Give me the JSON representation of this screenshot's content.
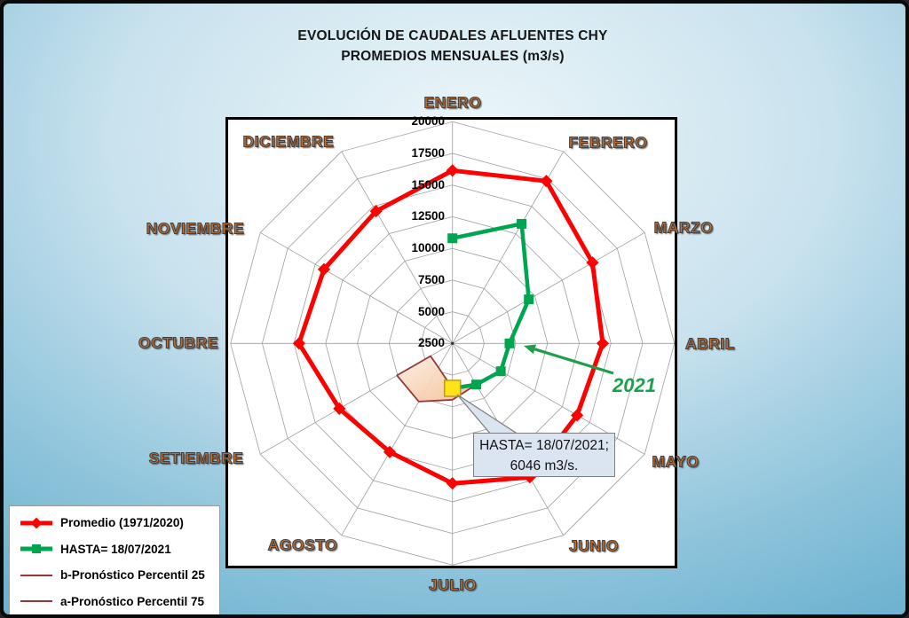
{
  "title": {
    "line1": "EVOLUCIÓN DE CAUDALES AFLUENTES CHY",
    "line2": "PROMEDIOS MENSUALES (m3/s)"
  },
  "annotations": {
    "year_label": "2021",
    "callout": {
      "line1": "HASTA= 18/07/2021;",
      "line2": "6046 m3/s."
    }
  },
  "legend": {
    "items": [
      {
        "label": "Promedio (1971/2020)",
        "color": "#FF0000",
        "marker": "diamond",
        "thick": true
      },
      {
        "label": "HASTA= 18/07/2021",
        "color": "#00A550",
        "marker": "square",
        "thick": true
      },
      {
        "label": "b-Pronóstico Percentil 25",
        "color": "#953735",
        "marker": "none",
        "thick": false
      },
      {
        "label": "a-Pronóstico Percentil 75",
        "color": "#953735",
        "marker": "none",
        "thick": false
      }
    ]
  },
  "colors": {
    "grid": "#9E9E9E",
    "promedio": "#FF0000",
    "hasta": "#00A550",
    "pronostico": "#953735",
    "highlight_fill": "#FFE319",
    "highlight_border": "#B99B1C",
    "band_light": "#FDEFE3",
    "band_dark": "#F3BC90",
    "callout_bg": "#DBE5F1",
    "month_label": "#C9702F",
    "arrow_green": "#1E9E4A"
  },
  "chart_data": {
    "type": "radar",
    "categories": [
      "ENERO",
      "FEBRERO",
      "MARZO",
      "ABRIL",
      "MAYO",
      "JUNIO",
      "JULIO",
      "AGOSTO",
      "SETIEMBRE",
      "OCTUBRE",
      "NOVIEMBRE",
      "DICIEMBRE"
    ],
    "radial_axis": {
      "min": 2500,
      "max": 20000,
      "step": 2500,
      "tick_labels": [
        "2500",
        "5000",
        "7500",
        "10000",
        "12500",
        "15000",
        "17500",
        "20000"
      ]
    },
    "grid": true,
    "legend_position": "bottom-left",
    "series": [
      {
        "name": "Promedio (1971/2020)",
        "color": "#FF0000",
        "marker": "diamond",
        "closed": true,
        "values": [
          16150,
          17300,
          15250,
          14350,
          13850,
          14700,
          13550,
          12400,
          12800,
          14600,
          14200,
          14550
        ]
      },
      {
        "name": "HASTA= 18/07/2021",
        "color": "#00A550",
        "marker": "square",
        "closed": false,
        "month_indices": [
          0,
          1,
          2,
          3,
          4,
          5,
          6
        ],
        "values": [
          10800,
          13400,
          9450,
          7000,
          6900,
          6250,
          6046
        ]
      },
      {
        "name": "b-Pronóstico Percentil 25",
        "color": "#953735",
        "marker": "none",
        "month_indices": [
          5,
          6,
          7,
          8
        ],
        "values": [
          6250,
          6046,
          4700,
          4500
        ]
      },
      {
        "name": "a-Pronóstico Percentil 75",
        "color": "#953735",
        "marker": "none",
        "month_indices": [
          5,
          6,
          7,
          8
        ],
        "values": [
          6250,
          6950,
          7800,
          7550
        ]
      }
    ],
    "highlight_point": {
      "month": "JULIO",
      "value": 6046,
      "note": "HASTA= 18/07/2021; 6046 m3/s."
    }
  }
}
